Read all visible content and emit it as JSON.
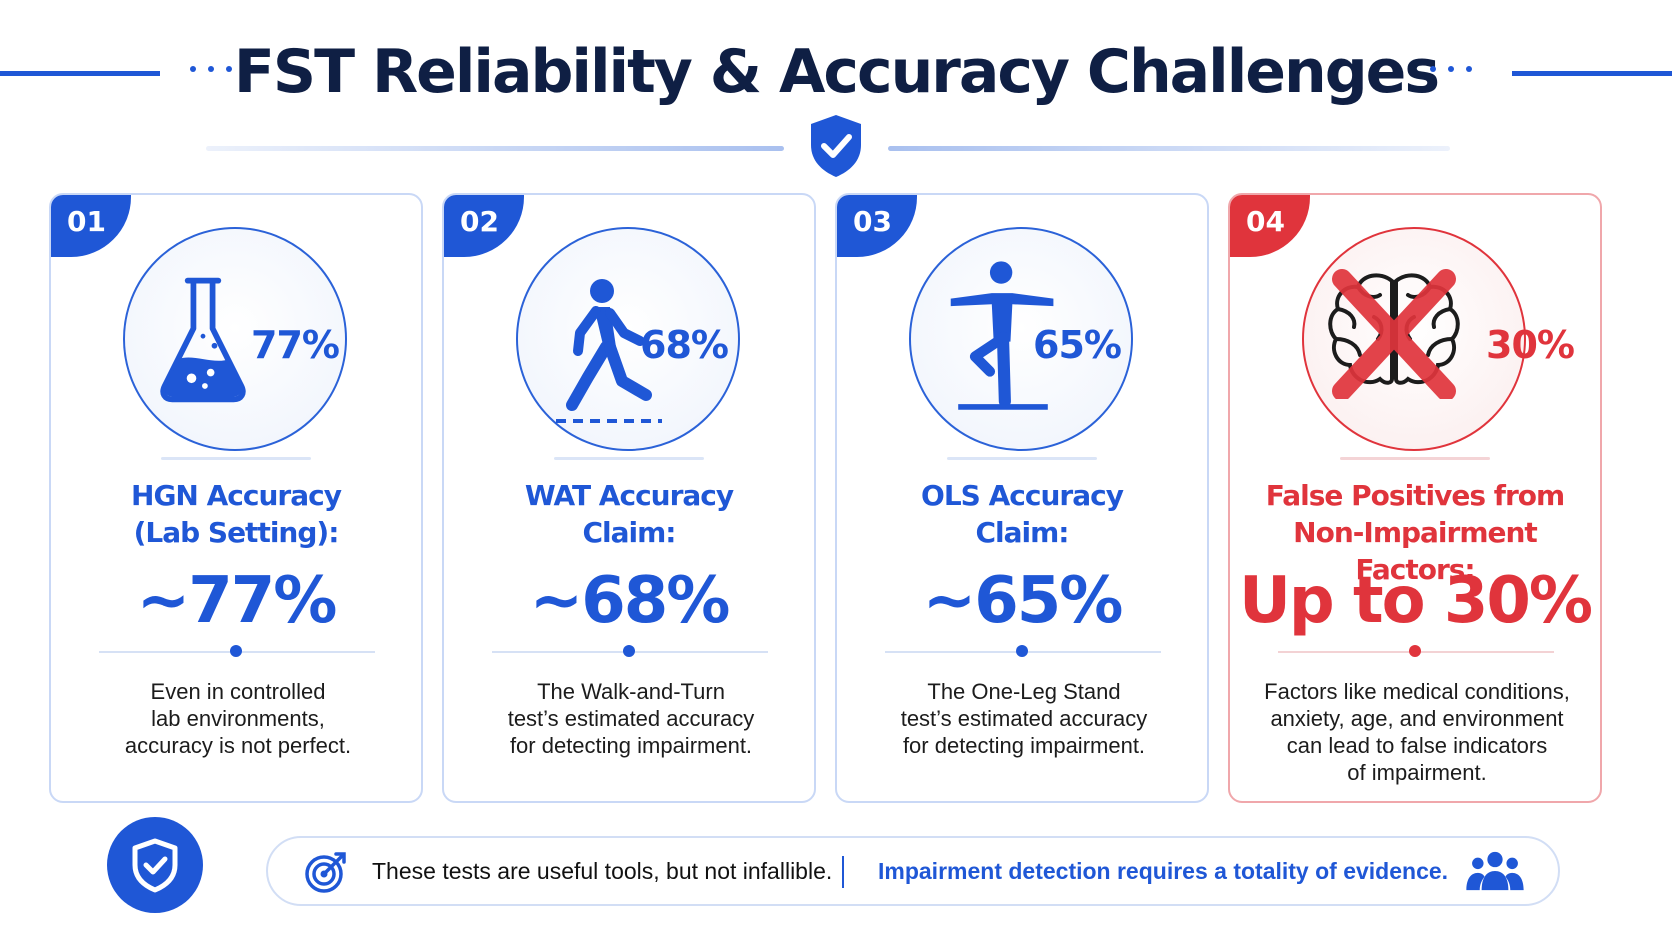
{
  "header": {
    "title": "FST Reliability & Accuracy Challenges"
  },
  "colors": {
    "primary": "#1f57d6",
    "alert": "#e0343c",
    "title": "#0f1f44"
  },
  "cards": [
    {
      "number": "01",
      "icon": "flask-icon",
      "small_pct": "77%",
      "label_line1": "HGN Accuracy",
      "label_line2": "(Lab Setting):",
      "big_value": "~77%",
      "desc_lines": [
        "Even in controlled",
        "lab environments,",
        "accuracy is not perfect."
      ]
    },
    {
      "number": "02",
      "icon": "walking-person-icon",
      "small_pct": "68%",
      "label_line1": "WAT Accuracy",
      "label_line2": "Claim:",
      "big_value": "~68%",
      "desc_lines": [
        "The Walk-and-Turn",
        "test’s estimated accuracy",
        "for detecting impairment."
      ]
    },
    {
      "number": "03",
      "icon": "one-leg-stand-icon",
      "small_pct": "65%",
      "label_line1": "OLS Accuracy",
      "label_line2": "Claim:",
      "big_value": "~65%",
      "desc_lines": [
        "The One-Leg Stand",
        "test’s estimated accuracy",
        "for detecting impairment."
      ]
    },
    {
      "number": "04",
      "icon": "brain-crossed-icon",
      "small_pct": "30%",
      "label_line1": "False Positives from",
      "label_line2": "Non-Impairment Factors:",
      "big_value": "Up to 30%",
      "desc_lines": [
        "Factors like medical conditions,",
        "anxiety, age, and environment",
        "can lead to false indicators",
        "of impairment."
      ]
    }
  ],
  "footer": {
    "text_left": "These tests are useful tools, but not infallible.",
    "text_right": "Impairment detection requires a totality of evidence."
  }
}
